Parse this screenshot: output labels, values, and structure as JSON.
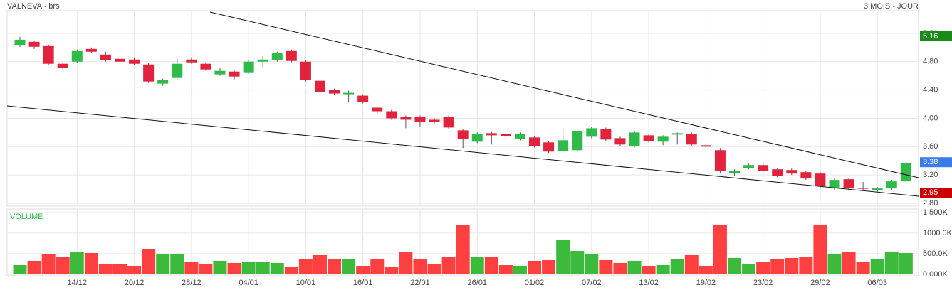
{
  "chart_data": {
    "type": "candlestick",
    "title": "VALNEVA - brs",
    "subtitle": "3 MOIS - JOUR",
    "categories": [
      null,
      null,
      null,
      null,
      "14/12",
      null,
      null,
      null,
      "20/12",
      null,
      null,
      null,
      "28/12",
      null,
      null,
      null,
      "04/01",
      null,
      null,
      null,
      "10/01",
      null,
      null,
      null,
      "16/01",
      null,
      null,
      null,
      "22/01",
      null,
      null,
      null,
      "26/01",
      null,
      null,
      null,
      "01/02",
      null,
      null,
      null,
      "07/02",
      null,
      null,
      null,
      "13/02",
      null,
      null,
      null,
      "19/02",
      null,
      null,
      null,
      "23/02",
      null,
      null,
      null,
      "29/02",
      null,
      null,
      null,
      "06/03",
      null,
      null
    ],
    "open": [
      5.03,
      5.08,
      5.02,
      4.77,
      4.8,
      4.98,
      4.9,
      4.84,
      4.83,
      4.76,
      4.49,
      4.57,
      4.83,
      4.77,
      4.62,
      4.66,
      4.65,
      4.8,
      4.82,
      4.95,
      4.8,
      4.53,
      4.4,
      4.34,
      4.32,
      4.15,
      4.1,
      4.02,
      4.02,
      3.98,
      4.02,
      3.83,
      3.67,
      3.79,
      3.78,
      3.71,
      3.73,
      3.66,
      3.54,
      3.55,
      3.74,
      3.85,
      3.72,
      3.61,
      3.76,
      3.67,
      3.77,
      3.78,
      3.62,
      3.55,
      3.22,
      3.3,
      3.34,
      3.28,
      3.27,
      3.24,
      3.22,
      3.01,
      3.14,
      3.02,
      2.98,
      3.01,
      3.11
    ],
    "high": [
      5.15,
      5.1,
      5.04,
      4.79,
      4.97,
      5.0,
      4.94,
      4.87,
      4.86,
      4.78,
      4.56,
      4.86,
      4.86,
      4.79,
      4.71,
      4.68,
      4.82,
      4.88,
      4.94,
      4.97,
      4.82,
      4.56,
      4.42,
      4.39,
      4.34,
      4.17,
      4.12,
      4.04,
      4.04,
      4.0,
      4.04,
      3.85,
      3.8,
      3.81,
      3.8,
      3.8,
      3.75,
      3.68,
      3.85,
      3.84,
      3.88,
      3.87,
      3.74,
      3.82,
      3.78,
      3.76,
      3.8,
      3.8,
      3.64,
      3.58,
      3.28,
      3.36,
      3.38,
      3.3,
      3.29,
      3.26,
      3.24,
      3.15,
      3.16,
      3.1,
      3.03,
      3.13,
      3.39
    ],
    "low": [
      5.01,
      4.98,
      4.75,
      4.69,
      4.78,
      4.92,
      4.8,
      4.78,
      4.75,
      4.5,
      4.46,
      4.55,
      4.77,
      4.67,
      4.6,
      4.55,
      4.63,
      4.72,
      4.8,
      4.79,
      4.52,
      4.35,
      4.33,
      4.23,
      4.21,
      4.07,
      3.98,
      3.86,
      3.88,
      3.93,
      3.85,
      3.58,
      3.65,
      3.63,
      3.73,
      3.69,
      3.59,
      3.51,
      3.52,
      3.53,
      3.72,
      3.68,
      3.61,
      3.59,
      3.66,
      3.62,
      3.63,
      3.61,
      3.58,
      3.22,
      3.18,
      3.28,
      3.24,
      3.17,
      3.2,
      3.13,
      3.02,
      2.99,
      2.99,
      2.99,
      2.96,
      2.99,
      3.1
    ],
    "close": [
      5.11,
      5.01,
      4.77,
      4.71,
      4.95,
      4.94,
      4.82,
      4.8,
      4.77,
      4.52,
      4.54,
      4.77,
      4.79,
      4.69,
      4.67,
      4.59,
      4.8,
      4.83,
      4.92,
      4.81,
      4.54,
      4.37,
      4.35,
      4.36,
      4.23,
      4.1,
      4.0,
      3.98,
      3.95,
      3.95,
      3.87,
      3.71,
      3.78,
      3.76,
      3.75,
      3.78,
      3.61,
      3.53,
      3.69,
      3.82,
      3.86,
      3.7,
      3.63,
      3.8,
      3.68,
      3.74,
      3.79,
      3.63,
      3.6,
      3.26,
      3.26,
      3.34,
      3.26,
      3.19,
      3.22,
      3.15,
      3.04,
      3.13,
      3.01,
      3.01,
      3.01,
      3.11,
      3.37
    ],
    "up_color": "#2fba4a",
    "down_color": "#e2233d",
    "ylim": [
      2.76,
      5.52
    ],
    "yticks": [
      {
        "value": 2.8,
        "label": "2.80"
      },
      {
        "value": 3.2,
        "label": "3.20"
      },
      {
        "value": 3.6,
        "label": "3.60"
      },
      {
        "value": 4.0,
        "label": "4.00"
      },
      {
        "value": 4.4,
        "label": "4.40"
      },
      {
        "value": 4.8,
        "label": "4.80"
      },
      {
        "value": 5.2,
        "label": "5.20"
      }
    ],
    "grid": true,
    "price_tags": [
      {
        "value": 5.16,
        "color": "#1a8a1a"
      },
      {
        "value": 3.38,
        "color": "#3b7de8"
      },
      {
        "value": 2.95,
        "color": "#cc0000"
      }
    ],
    "volume": {
      "label": "VOLUME",
      "up_color": "#3cba3c",
      "down_color": "#ff4040",
      "values": [
        224000,
        328000,
        483000,
        414000,
        534000,
        517000,
        259000,
        241000,
        207000,
        603000,
        483000,
        483000,
        310000,
        241000,
        328000,
        276000,
        310000,
        293000,
        276000,
        172000,
        362000,
        466000,
        379000,
        362000,
        207000,
        362000,
        190000,
        534000,
        362000,
        241000,
        414000,
        1190000,
        414000,
        414000,
        224000,
        207000,
        328000,
        345000,
        828000,
        569000,
        483000,
        345000,
        276000,
        328000,
        207000,
        224000,
        379000,
        466000,
        207000,
        1207000,
        397000,
        259000,
        293000,
        379000,
        397000,
        431000,
        1207000,
        500000,
        534000,
        310000,
        362000,
        552000,
        517000
      ],
      "ylim": [
        0,
        1550000
      ],
      "yticks": [
        {
          "value": 0,
          "label": "0.000K"
        },
        {
          "value": 500000,
          "label": "500.0K"
        },
        {
          "value": 1000000,
          "label": "1000.0K"
        },
        {
          "value": 1500000,
          "label": "1 500K"
        }
      ]
    }
  }
}
